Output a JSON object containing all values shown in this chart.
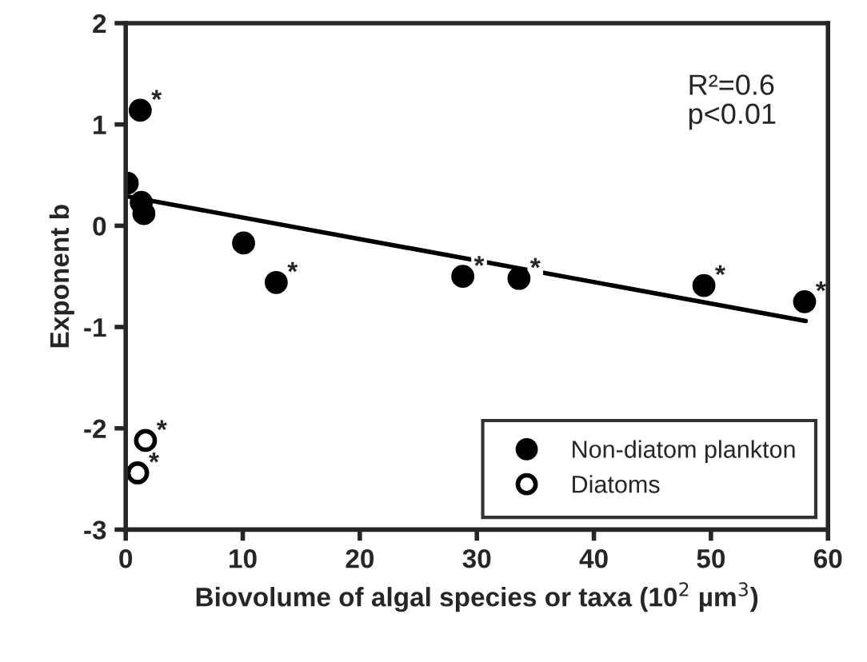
{
  "chart_data": {
    "type": "scatter",
    "xlabel": "Biovolume of algal species or taxa (10$^{2}$ µm$^{3}$)",
    "ylabel": "Exponent b",
    "xlim": [
      0,
      60
    ],
    "ylim": [
      -3,
      2
    ],
    "xticks": [
      0,
      10,
      20,
      30,
      40,
      50,
      60
    ],
    "yticks": [
      -3,
      -2,
      -1,
      0,
      1,
      2
    ],
    "grid": false,
    "legend": "bottom right",
    "series": [
      {
        "name": "Non-diatom plankton",
        "color": "#000000",
        "marker": "circle",
        "x": [
          0.13,
          1.24,
          1.33,
          1.55,
          10.07,
          12.86,
          28.8,
          33.6,
          49.4,
          58.0
        ],
        "values": [
          0.42,
          1.14,
          0.23,
          0.12,
          -0.17,
          -0.56,
          -0.5,
          -0.52,
          -0.59,
          -0.75
        ]
      },
      {
        "name": "Diatoms",
        "color": "#ffffff",
        "marker": "circle",
        "x": [
          1.69,
          1.02
        ],
        "values": [
          -2.12,
          -2.44
        ]
      },
      {
        "type": "line",
        "color": "#000000",
        "marker": "none",
        "x": [
          0.13,
          58.1
        ],
        "values": [
          0.29,
          -0.94
        ]
      }
    ],
    "annotations": [
      "R²=0.6\np<0.01",
      {
        "text": "*",
        "x": 1.24,
        "y": 1.14
      },
      {
        "text": "*",
        "x": 12.86,
        "y": -0.56
      },
      {
        "text": "*",
        "x": 28.8,
        "y": -0.5
      },
      {
        "text": "*",
        "x": 33.6,
        "y": -0.52
      },
      {
        "text": "*",
        "x": 49.4,
        "y": -0.59
      },
      {
        "text": "*",
        "x": 58.0,
        "y": -0.75
      },
      {
        "text": "*",
        "x": 1.69,
        "y": -2.12
      },
      {
        "text": "*",
        "x": 1.02,
        "y": -2.44
      }
    ]
  }
}
